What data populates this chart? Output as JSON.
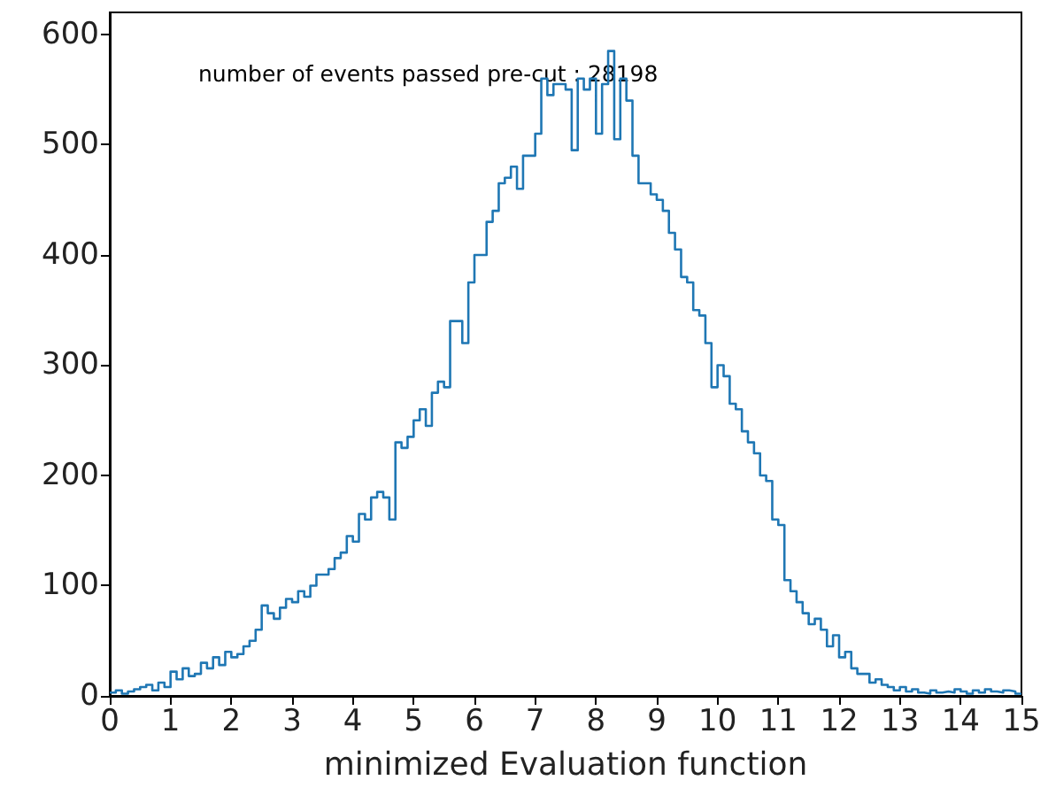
{
  "chart_data": {
    "type": "histogram",
    "xlabel": "minimized Evaluation function",
    "annotations": [
      "number of events passed pre-cut : 28198"
    ],
    "color": "#1f77b4",
    "bins": [
      0,
      0.1,
      0.2,
      0.3,
      0.4,
      0.5,
      0.6,
      0.7,
      0.8,
      0.9,
      1,
      1.1,
      1.2,
      1.3,
      1.4,
      1.5,
      1.6,
      1.7,
      1.8,
      1.9,
      2,
      2.1,
      2.2,
      2.3,
      2.4,
      2.5,
      2.6,
      2.7,
      2.8,
      2.9,
      3,
      3.1,
      3.2,
      3.3,
      3.4,
      3.5,
      3.6,
      3.7,
      3.8,
      3.9,
      4,
      4.1,
      4.2,
      4.3,
      4.4,
      4.5,
      4.6,
      4.7,
      4.8,
      4.9,
      5,
      5.1,
      5.2,
      5.3,
      5.4,
      5.5,
      5.6,
      5.7,
      5.8,
      5.9,
      6,
      6.1,
      6.2,
      6.3,
      6.4,
      6.5,
      6.6,
      6.7,
      6.8,
      6.9,
      7,
      7.1,
      7.2,
      7.3,
      7.4,
      7.5,
      7.6,
      7.7,
      7.8,
      7.9,
      8,
      8.1,
      8.2,
      8.3,
      8.4,
      8.5,
      8.6,
      8.7,
      8.8,
      8.9,
      9,
      9.1,
      9.2,
      9.3,
      9.4,
      9.5,
      9.6,
      9.7,
      9.8,
      9.9,
      10,
      10.1,
      10.2,
      10.3,
      10.4,
      10.5,
      10.6,
      10.7,
      10.8,
      10.9,
      11,
      11.1,
      11.2,
      11.3,
      11.4,
      11.5,
      11.6,
      11.7,
      11.8,
      11.9,
      12,
      12.1,
      12.2,
      12.3,
      12.4,
      12.5,
      12.6,
      12.7,
      12.8,
      12.9,
      13,
      13.1,
      13.2,
      13.3,
      13.4,
      13.5,
      13.6,
      13.7,
      13.8,
      13.9,
      14,
      14.1,
      14.2,
      14.3,
      14.4,
      14.5,
      14.6,
      14.7,
      14.8,
      14.9,
      15
    ],
    "values": [
      3,
      5,
      2,
      4,
      6,
      8,
      10,
      5,
      12,
      8,
      22,
      15,
      25,
      18,
      20,
      30,
      25,
      35,
      28,
      40,
      35,
      38,
      45,
      50,
      60,
      82,
      75,
      70,
      80,
      88,
      85,
      95,
      90,
      100,
      110,
      110,
      115,
      125,
      130,
      145,
      140,
      165,
      160,
      180,
      185,
      180,
      160,
      230,
      225,
      235,
      250,
      260,
      245,
      275,
      285,
      280,
      340,
      340,
      320,
      375,
      400,
      400,
      430,
      440,
      465,
      470,
      480,
      460,
      490,
      490,
      510,
      560,
      545,
      555,
      555,
      550,
      495,
      560,
      550,
      560,
      510,
      555,
      585,
      505,
      560,
      540,
      490,
      465,
      465,
      455,
      450,
      440,
      420,
      405,
      380,
      375,
      350,
      345,
      320,
      280,
      300,
      290,
      265,
      260,
      240,
      230,
      220,
      200,
      195,
      160,
      155,
      105,
      95,
      85,
      75,
      65,
      70,
      60,
      45,
      55,
      35,
      40,
      25,
      20,
      20,
      12,
      15,
      10,
      8,
      5,
      8,
      4,
      6,
      3,
      2,
      5,
      3,
      4,
      3,
      6,
      4,
      2,
      5,
      3,
      6,
      4,
      3,
      5,
      4,
      2
    ],
    "xlim": [
      0,
      15
    ],
    "xticks": [
      0,
      1,
      2,
      3,
      4,
      5,
      6,
      7,
      8,
      9,
      10,
      11,
      12,
      13,
      14,
      15
    ],
    "ylim": [
      0,
      620
    ],
    "yticks": [
      0,
      100,
      200,
      300,
      400,
      500,
      600
    ],
    "grid": false
  }
}
